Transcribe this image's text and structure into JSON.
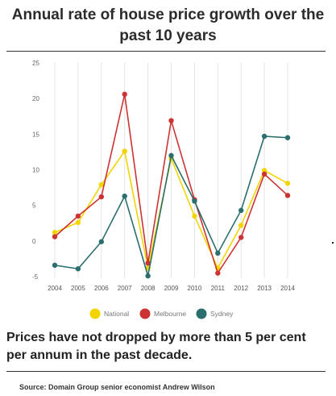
{
  "title": "Annual rate of house price growth over the past 10 years",
  "caption": "Prices have not dropped by more than 5 per cent per annum in the past decade.",
  "source": "Source: Domain Group senior economist Andrew Wilson",
  "chart_data": {
    "type": "line",
    "title": "Annual rate of house price growth over the past 10 years",
    "xlabel": "",
    "ylabel": "",
    "x": [
      "2004",
      "2005",
      "2006",
      "2007",
      "2008",
      "2009",
      "2010",
      "2011",
      "2012",
      "2013",
      "2014"
    ],
    "ylim": [
      -5,
      25
    ],
    "yticks": [
      25,
      20,
      15,
      10,
      5,
      0,
      -5
    ],
    "grid": "vertical",
    "legend": "bottom",
    "series": [
      {
        "name": "National",
        "color": "#f2d500",
        "values": [
          1.2,
          2.6,
          7.9,
          12.6,
          -3.8,
          11.6,
          3.5,
          -3.8,
          2.2,
          9.9,
          8.1
        ]
      },
      {
        "name": "Melbourne",
        "color": "#cc3333",
        "values": [
          0.6,
          3.5,
          6.2,
          20.6,
          -3.1,
          16.9,
          5.8,
          -4.5,
          0.5,
          9.4,
          6.4
        ]
      },
      {
        "name": "Sydney",
        "color": "#2a6e6e",
        "values": [
          -3.4,
          -3.9,
          -0.1,
          6.3,
          -4.9,
          12.0,
          5.6,
          -1.7,
          4.3,
          14.7,
          14.5
        ]
      }
    ]
  }
}
